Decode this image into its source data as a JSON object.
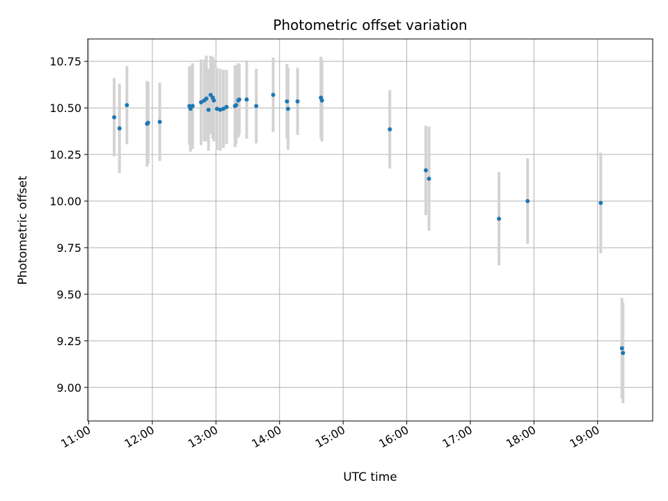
{
  "chart_data": {
    "type": "scatter",
    "title": "Photometric offset variation",
    "xlabel": "UTC time",
    "ylabel": "Photometric offset",
    "x_ticks": [
      "11:00",
      "12:00",
      "13:00",
      "14:00",
      "15:00",
      "16:00",
      "17:00",
      "18:00",
      "19:00"
    ],
    "y_ticks": [
      "9.00",
      "9.25",
      "9.50",
      "9.75",
      "10.00",
      "10.25",
      "10.50",
      "10.75"
    ],
    "xlim": [
      "10:59",
      "19:52"
    ],
    "ylim": [
      8.82,
      10.87
    ],
    "grid": true,
    "colors": {
      "point": "#1f77b4",
      "errorbar": "#d3d3d3",
      "grid": "#b0b0b0"
    },
    "series": [
      {
        "points": [
          {
            "x": "11:24",
            "y": 10.45,
            "err": 0.21
          },
          {
            "x": "11:29",
            "y": 10.39,
            "err": 0.24
          },
          {
            "x": "11:36",
            "y": 10.515,
            "err": 0.21
          },
          {
            "x": "11:55",
            "y": 10.415,
            "err": 0.23
          },
          {
            "x": "11:56",
            "y": 10.42,
            "err": 0.22
          },
          {
            "x": "12:07",
            "y": 10.425,
            "err": 0.21
          },
          {
            "x": "12:35",
            "y": 10.51,
            "err": 0.21
          },
          {
            "x": "12:36",
            "y": 10.495,
            "err": 0.23
          },
          {
            "x": "12:38",
            "y": 10.51,
            "err": 0.23
          },
          {
            "x": "12:46",
            "y": 10.53,
            "err": 0.23
          },
          {
            "x": "12:49",
            "y": 10.54,
            "err": 0.22
          },
          {
            "x": "12:51",
            "y": 10.55,
            "err": 0.23
          },
          {
            "x": "12:53",
            "y": 10.49,
            "err": 0.22
          },
          {
            "x": "12:55",
            "y": 10.57,
            "err": 0.21
          },
          {
            "x": "12:57",
            "y": 10.555,
            "err": 0.22
          },
          {
            "x": "12:58",
            "y": 10.54,
            "err": 0.22
          },
          {
            "x": "13:01",
            "y": 10.495,
            "err": 0.22
          },
          {
            "x": "13:04",
            "y": 10.49,
            "err": 0.22
          },
          {
            "x": "13:07",
            "y": 10.495,
            "err": 0.21
          },
          {
            "x": "13:10",
            "y": 10.505,
            "err": 0.2
          },
          {
            "x": "13:18",
            "y": 10.51,
            "err": 0.22
          },
          {
            "x": "13:19",
            "y": 10.515,
            "err": 0.21
          },
          {
            "x": "13:21",
            "y": 10.54,
            "err": 0.2
          },
          {
            "x": "13:22",
            "y": 10.545,
            "err": 0.19
          },
          {
            "x": "13:29",
            "y": 10.545,
            "err": 0.21
          },
          {
            "x": "13:38",
            "y": 10.51,
            "err": 0.2
          },
          {
            "x": "13:54",
            "y": 10.57,
            "err": 0.2
          },
          {
            "x": "14:07",
            "y": 10.535,
            "err": 0.2
          },
          {
            "x": "14:08",
            "y": 10.495,
            "err": 0.22
          },
          {
            "x": "14:17",
            "y": 10.535,
            "err": 0.18
          },
          {
            "x": "14:39",
            "y": 10.555,
            "err": 0.22
          },
          {
            "x": "14:40",
            "y": 10.54,
            "err": 0.22
          },
          {
            "x": "15:44",
            "y": 10.385,
            "err": 0.21
          },
          {
            "x": "16:18",
            "y": 10.165,
            "err": 0.24
          },
          {
            "x": "16:21",
            "y": 10.12,
            "err": 0.28
          },
          {
            "x": "17:27",
            "y": 9.905,
            "err": 0.25
          },
          {
            "x": "17:54",
            "y": 10.0,
            "err": 0.23
          },
          {
            "x": "19:03",
            "y": 9.99,
            "err": 0.27
          },
          {
            "x": "19:23",
            "y": 9.21,
            "err": 0.27
          },
          {
            "x": "19:24",
            "y": 9.185,
            "err": 0.27
          }
        ]
      }
    ]
  }
}
